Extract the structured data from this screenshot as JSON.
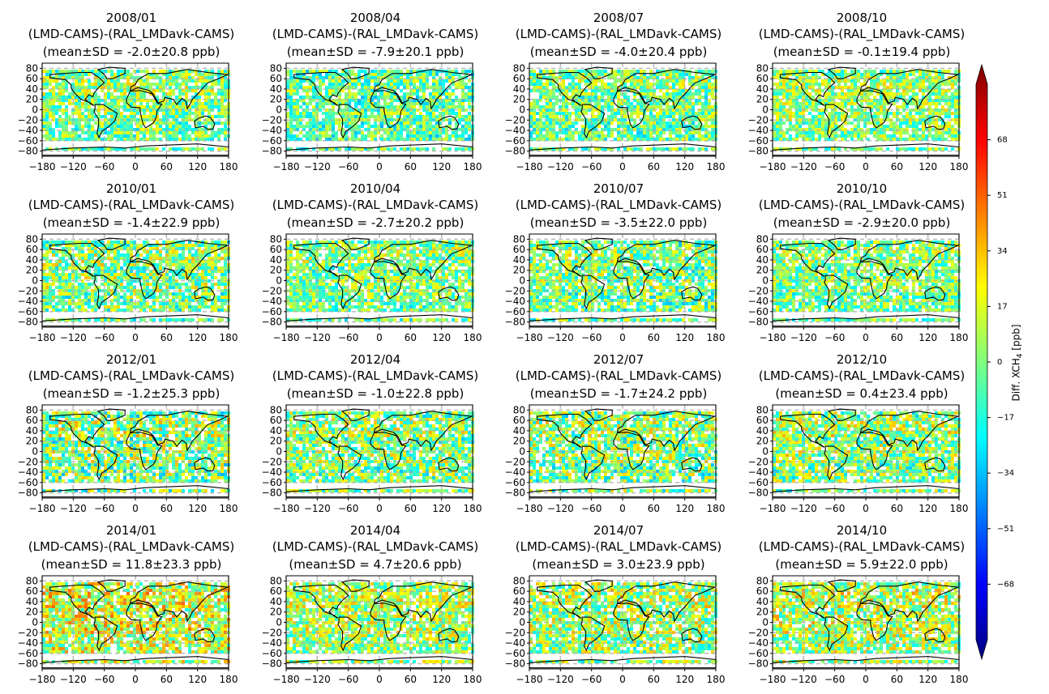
{
  "figure": {
    "panel_subtitle": "(LMD-CAMS)-(RAL_LMDavk-CAMS)",
    "stat_prefix": "(mean±SD = ",
    "stat_suffix": " ppb)"
  },
  "chart_data": {
    "type": "heatmap",
    "panels": [
      {
        "date": "2008/01",
        "mean": "-2.0",
        "sd": "20.8"
      },
      {
        "date": "2008/04",
        "mean": "-7.9",
        "sd": "20.1"
      },
      {
        "date": "2008/07",
        "mean": "-4.0",
        "sd": "20.4"
      },
      {
        "date": "2008/10",
        "mean": "-0.1",
        "sd": "19.4"
      },
      {
        "date": "2010/01",
        "mean": "-1.4",
        "sd": "22.9"
      },
      {
        "date": "2010/04",
        "mean": "-2.7",
        "sd": "20.2"
      },
      {
        "date": "2010/07",
        "mean": "-3.5",
        "sd": "22.0"
      },
      {
        "date": "2010/10",
        "mean": "-2.9",
        "sd": "20.0"
      },
      {
        "date": "2012/01",
        "mean": "-1.2",
        "sd": "25.3"
      },
      {
        "date": "2012/04",
        "mean": "-1.0",
        "sd": "22.8"
      },
      {
        "date": "2012/07",
        "mean": "-1.7",
        "sd": "24.2"
      },
      {
        "date": "2012/10",
        "mean": "0.4",
        "sd": "23.4"
      },
      {
        "date": "2014/01",
        "mean": "11.8",
        "sd": "23.3"
      },
      {
        "date": "2014/04",
        "mean": "4.7",
        "sd": "20.6"
      },
      {
        "date": "2014/07",
        "mean": "3.0",
        "sd": "23.9"
      },
      {
        "date": "2014/10",
        "mean": "5.9",
        "sd": "22.0"
      }
    ],
    "x_ticks": [
      -180,
      -120,
      -60,
      0,
      60,
      120,
      180
    ],
    "x_tick_labels": [
      "−180",
      "−120",
      "−60",
      "0",
      "60",
      "120",
      "180"
    ],
    "y_ticks": [
      80,
      60,
      40,
      20,
      0,
      -20,
      -40,
      -60,
      -80
    ],
    "y_tick_labels": [
      "80",
      "60",
      "40",
      "20",
      "0",
      "−20",
      "−40",
      "−60",
      "−80"
    ],
    "xlim": [
      -180,
      180
    ],
    "ylim": [
      -90,
      90
    ],
    "grid": true,
    "colorbar": {
      "label_main": "Diff. XCH",
      "label_sub": "4",
      "label_unit": " [ppb]",
      "range": [
        -85,
        85
      ],
      "ticks": [
        68,
        51,
        34,
        17,
        0,
        -17,
        -34,
        -51,
        -68
      ],
      "tick_labels": [
        "68",
        "51",
        "34",
        "17",
        "0",
        "−17",
        "−34",
        "−51",
        "−68"
      ],
      "colormap": "jet"
    }
  }
}
